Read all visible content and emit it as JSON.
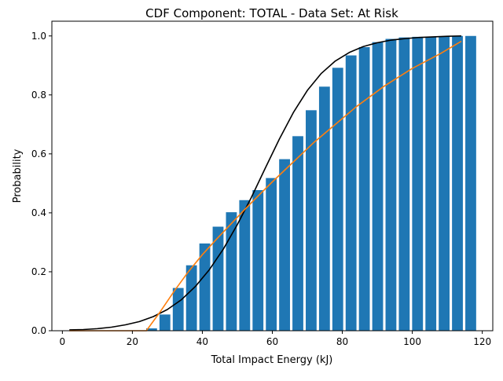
{
  "chart_data": {
    "type": "bar",
    "title": "CDF Component: TOTAL - Data Set: At Risk",
    "xlabel": "Total Impact Energy (kJ)",
    "ylabel": "Probability",
    "xlim": [
      -3,
      123
    ],
    "ylim": [
      0,
      1.05
    ],
    "xticks": [
      0,
      20,
      40,
      60,
      80,
      100,
      120
    ],
    "yticks": [
      0.0,
      0.2,
      0.4,
      0.6,
      0.8,
      1.0
    ],
    "xtick_labels": [
      "0",
      "20",
      "40",
      "60",
      "80",
      "100",
      "120"
    ],
    "ytick_labels": [
      "0.0",
      "0.2",
      "0.4",
      "0.6",
      "0.8",
      "1.0"
    ],
    "grid": false,
    "legend": "none",
    "bar_color": "#1f77b4",
    "bar_width": 3.1,
    "categories": [
      25.5,
      29.3,
      33.1,
      36.9,
      40.7,
      44.5,
      48.3,
      52.1,
      55.9,
      59.7,
      63.5,
      67.3,
      71.1,
      74.9,
      78.7,
      82.5,
      86.3,
      90.1,
      93.9,
      97.7,
      101.5,
      105.3,
      109.1,
      112.9,
      116.7
    ],
    "values": [
      0.008,
      0.055,
      0.145,
      0.222,
      0.296,
      0.353,
      0.402,
      0.443,
      0.477,
      0.518,
      0.582,
      0.66,
      0.748,
      0.828,
      0.892,
      0.934,
      0.962,
      0.979,
      0.99,
      0.995,
      0.997,
      0.998,
      0.999,
      1.0,
      1.0
    ],
    "series": [
      {
        "type": "line",
        "color": "#000000",
        "x": [
          2,
          6,
          10,
          14,
          18,
          22,
          26,
          30,
          34,
          38,
          42,
          46,
          50,
          54,
          58,
          62,
          66,
          70,
          74,
          78,
          82,
          86,
          90,
          94,
          98,
          102,
          106,
          110,
          114
        ],
        "values": [
          0.003,
          0.004,
          0.007,
          0.012,
          0.02,
          0.031,
          0.048,
          0.072,
          0.105,
          0.15,
          0.207,
          0.277,
          0.36,
          0.452,
          0.552,
          0.65,
          0.74,
          0.815,
          0.873,
          0.915,
          0.944,
          0.964,
          0.977,
          0.986,
          0.991,
          0.995,
          0.997,
          0.999,
          1.0
        ]
      },
      {
        "type": "line",
        "color": "#ff7f0e",
        "x": [
          2,
          12,
          20,
          24,
          28,
          32,
          36,
          40,
          44,
          48,
          52,
          56,
          60,
          64,
          68,
          72,
          76,
          80,
          84,
          88,
          92,
          96,
          100,
          104,
          108,
          114
        ],
        "values": [
          0.0,
          0.0,
          0.0,
          0.0,
          0.065,
          0.135,
          0.2,
          0.258,
          0.31,
          0.36,
          0.41,
          0.458,
          0.505,
          0.55,
          0.595,
          0.64,
          0.68,
          0.72,
          0.76,
          0.795,
          0.83,
          0.86,
          0.89,
          0.915,
          0.94,
          0.982
        ]
      }
    ]
  }
}
